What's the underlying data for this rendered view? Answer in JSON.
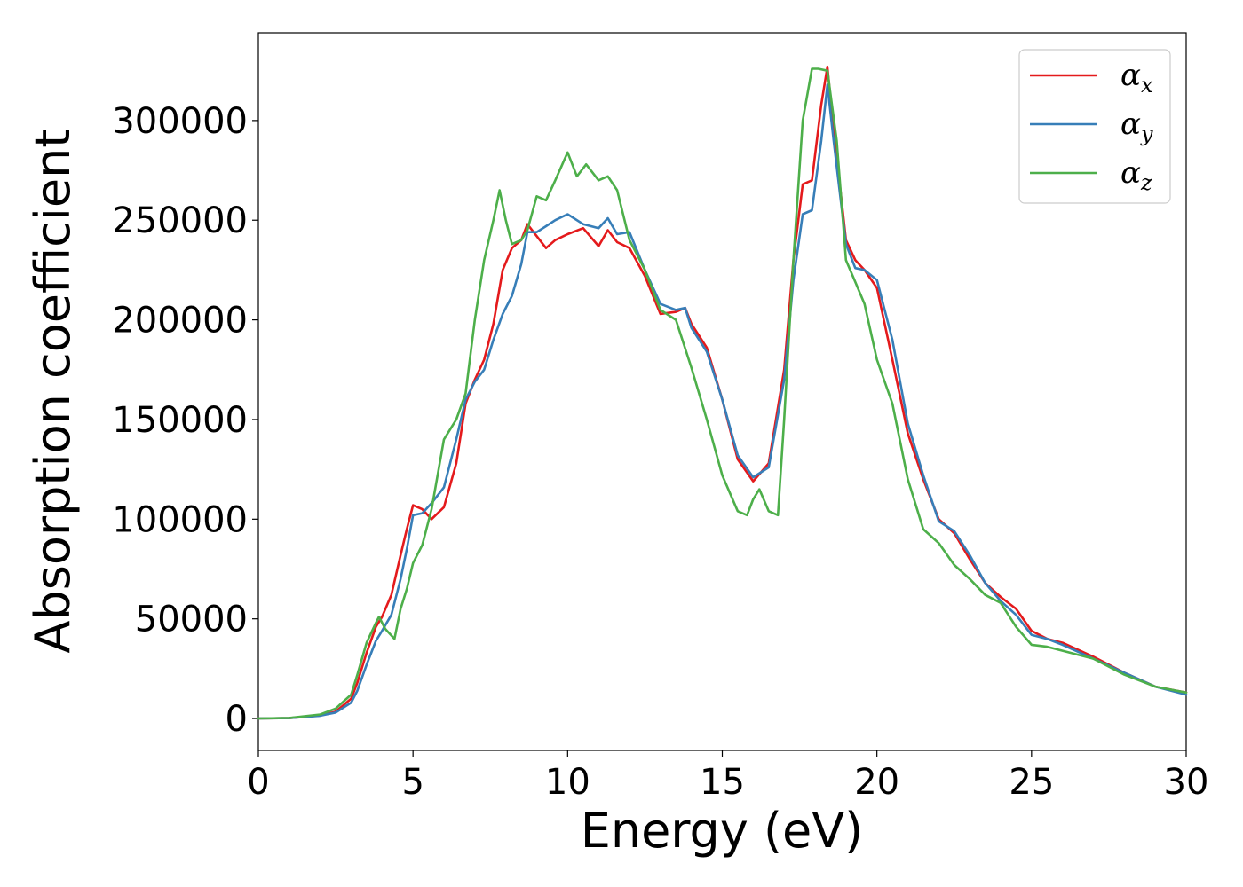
{
  "chart_data": {
    "type": "line",
    "xlabel": "Energy (eV)",
    "ylabel": "Absorption coefficient",
    "xlim": [
      0,
      30
    ],
    "ylim": [
      -16000,
      344000
    ],
    "xticks": [
      "0",
      "5",
      "10",
      "15",
      "20",
      "25",
      "30"
    ],
    "yticks": [
      "0",
      "50000",
      "100000",
      "150000",
      "200000",
      "250000",
      "300000"
    ],
    "grid": false,
    "legend_position": "top-right",
    "series": [
      {
        "name": "αx",
        "legend_base": "α",
        "legend_sub": "x",
        "color": "#e41a1c",
        "x": [
          0,
          1,
          2,
          2.5,
          3,
          3.2,
          3.5,
          3.8,
          4,
          4.3,
          4.6,
          4.8,
          5,
          5.3,
          5.6,
          6,
          6.4,
          6.7,
          7,
          7.3,
          7.6,
          7.9,
          8.2,
          8.5,
          8.7,
          9,
          9.3,
          9.6,
          10,
          10.5,
          11,
          11.3,
          11.6,
          12,
          12.5,
          13,
          13.5,
          13.8,
          14,
          14.5,
          15,
          15.5,
          16,
          16.5,
          17,
          17.3,
          17.6,
          17.9,
          18.2,
          18.4,
          18.6,
          19,
          19.3,
          19.6,
          20,
          20.5,
          21,
          21.5,
          22,
          22.5,
          23,
          23.5,
          24,
          24.5,
          25,
          25.5,
          26,
          27,
          28,
          29,
          30
        ],
        "y": [
          0,
          200,
          1500,
          3500,
          10000,
          18000,
          33000,
          46000,
          51000,
          62000,
          82000,
          95000,
          107000,
          105000,
          100000,
          106000,
          128000,
          158000,
          170000,
          180000,
          198000,
          225000,
          236000,
          240000,
          248000,
          242000,
          236000,
          240000,
          243000,
          246000,
          237000,
          245000,
          239000,
          236000,
          222000,
          203000,
          204000,
          206000,
          198000,
          186000,
          160000,
          130000,
          119000,
          128000,
          175000,
          230000,
          268000,
          270000,
          308000,
          327000,
          296000,
          240000,
          230000,
          225000,
          216000,
          180000,
          143000,
          120000,
          100000,
          93000,
          80000,
          68000,
          61000,
          55000,
          44000,
          40000,
          38000,
          31000,
          23000,
          16000,
          13000
        ]
      },
      {
        "name": "αy",
        "legend_base": "α",
        "legend_sub": "y",
        "color": "#377eb8",
        "x": [
          0,
          1,
          2,
          2.5,
          3,
          3.2,
          3.5,
          3.8,
          4,
          4.3,
          4.6,
          4.8,
          5,
          5.3,
          5.6,
          6,
          6.4,
          6.7,
          7,
          7.3,
          7.6,
          7.9,
          8.2,
          8.5,
          8.7,
          9,
          9.3,
          9.6,
          10,
          10.5,
          11,
          11.3,
          11.6,
          12,
          12.5,
          13,
          13.5,
          13.8,
          14,
          14.5,
          15,
          15.5,
          16,
          16.5,
          17,
          17.3,
          17.6,
          17.9,
          18.2,
          18.4,
          18.6,
          19,
          19.3,
          19.6,
          20,
          20.5,
          21,
          21.5,
          22,
          22.5,
          23,
          23.5,
          24,
          24.5,
          25,
          25.5,
          26,
          27,
          28,
          29,
          30
        ],
        "y": [
          0,
          200,
          1400,
          3000,
          8000,
          14000,
          27000,
          39000,
          44000,
          52000,
          70000,
          85000,
          102000,
          103000,
          108000,
          116000,
          140000,
          160000,
          169000,
          175000,
          190000,
          203000,
          212000,
          228000,
          244000,
          244000,
          247000,
          250000,
          253000,
          248000,
          246000,
          251000,
          243000,
          244000,
          225000,
          208000,
          205000,
          206000,
          196000,
          184000,
          160000,
          132000,
          121000,
          126000,
          170000,
          220000,
          253000,
          255000,
          290000,
          318000,
          290000,
          238000,
          226000,
          225000,
          220000,
          190000,
          148000,
          122000,
          99000,
          94000,
          82000,
          68000,
          59000,
          52000,
          42000,
          40000,
          37000,
          30000,
          23000,
          16000,
          12000
        ]
      },
      {
        "name": "αz",
        "legend_base": "α",
        "legend_sub": "z",
        "color": "#4daf4a",
        "x": [
          0,
          1,
          2,
          2.5,
          3,
          3.2,
          3.5,
          3.8,
          3.9,
          4.1,
          4.4,
          4.6,
          4.8,
          5,
          5.3,
          5.6,
          6,
          6.4,
          6.7,
          7,
          7.3,
          7.6,
          7.8,
          8,
          8.2,
          8.5,
          8.7,
          9,
          9.3,
          9.6,
          10,
          10.3,
          10.6,
          11,
          11.3,
          11.6,
          12,
          12.5,
          13,
          13.5,
          14,
          14.5,
          15,
          15.5,
          15.8,
          16,
          16.2,
          16.5,
          16.8,
          17,
          17.3,
          17.6,
          17.9,
          18.1,
          18.4,
          18.7,
          19,
          19.3,
          19.6,
          20,
          20.5,
          21,
          21.5,
          22,
          22.5,
          23,
          23.5,
          24,
          24.5,
          25,
          25.5,
          26,
          27,
          28,
          29,
          30
        ],
        "y": [
          0,
          300,
          2000,
          5000,
          12000,
          22000,
          38000,
          48000,
          51000,
          45000,
          40000,
          55000,
          65000,
          78000,
          87000,
          105000,
          140000,
          150000,
          163000,
          200000,
          230000,
          250000,
          265000,
          250000,
          238000,
          240000,
          245000,
          262000,
          260000,
          270000,
          284000,
          272000,
          278000,
          270000,
          272000,
          265000,
          240000,
          225000,
          205000,
          200000,
          176000,
          150000,
          122000,
          104000,
          102000,
          110000,
          115000,
          104000,
          102000,
          150000,
          230000,
          300000,
          326000,
          326000,
          325000,
          290000,
          230000,
          219000,
          208000,
          180000,
          158000,
          120000,
          95000,
          88000,
          77000,
          70000,
          62000,
          58000,
          46000,
          37000,
          36000,
          34000,
          30000,
          22000,
          16000,
          13000
        ]
      }
    ]
  }
}
